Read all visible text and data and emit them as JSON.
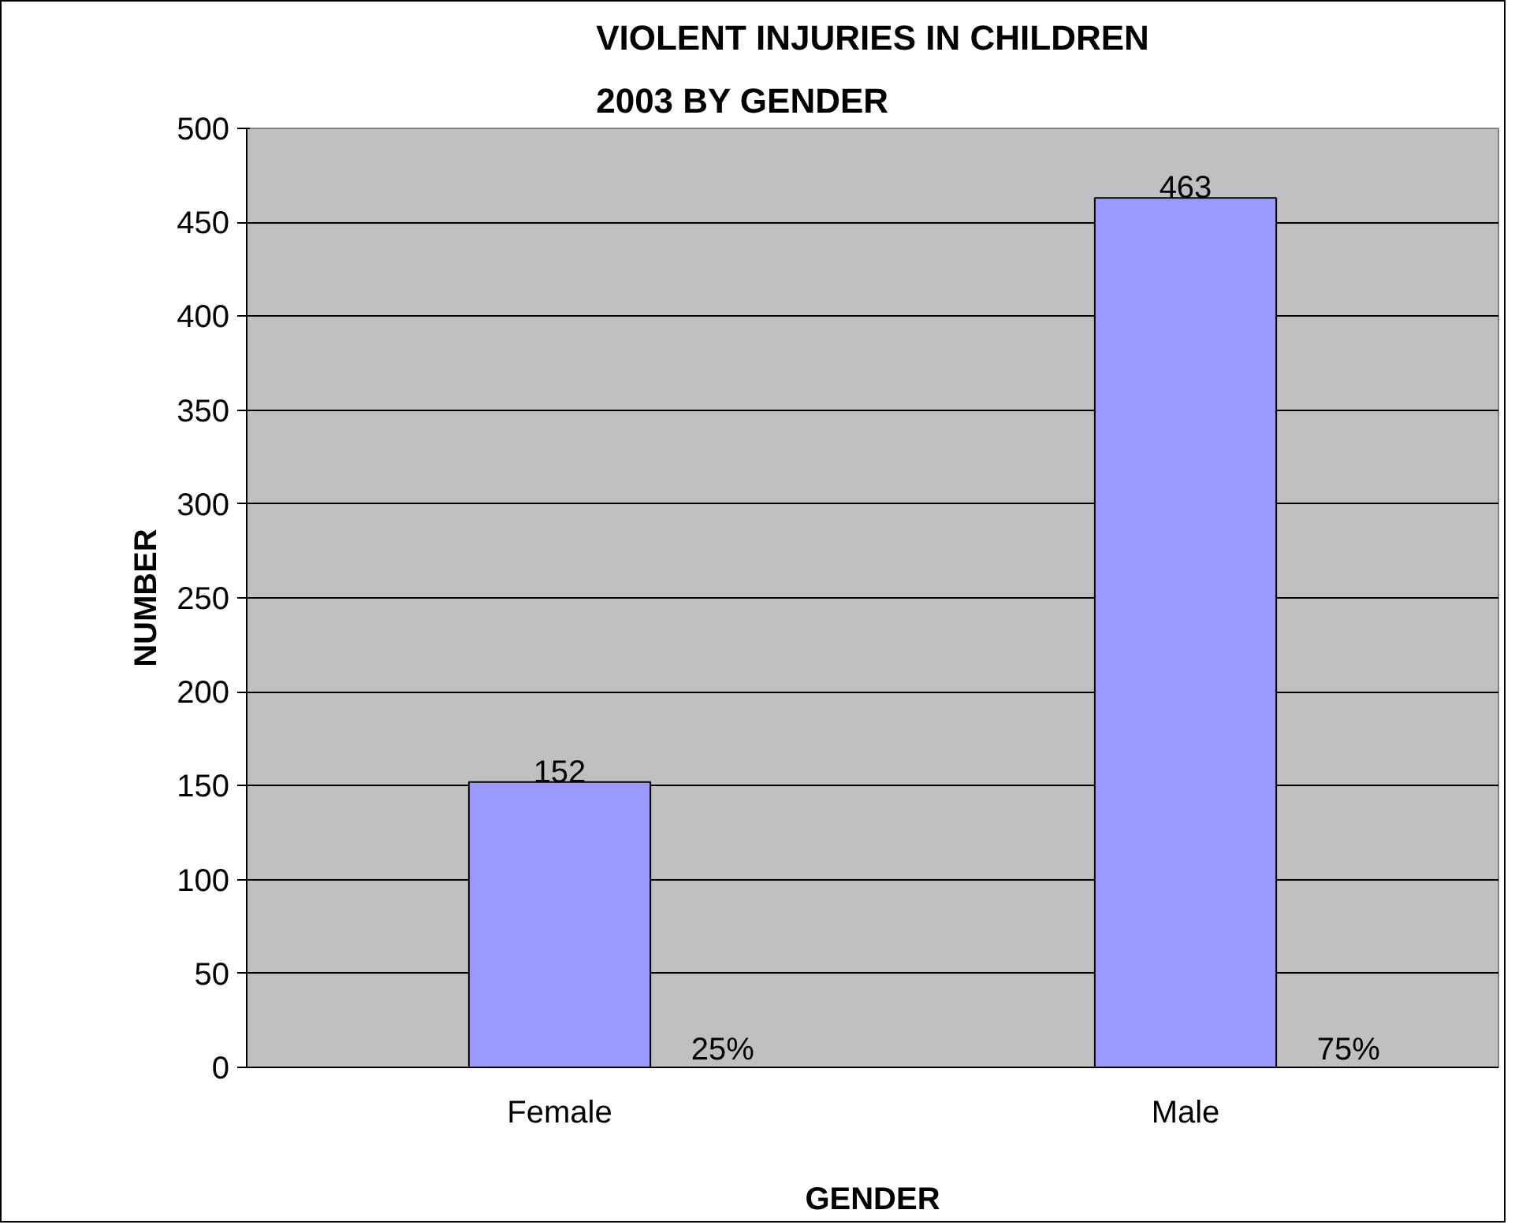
{
  "chart_data": {
    "type": "bar",
    "title": "VIOLENT INJURIES IN CHILDREN 2003 BY GENDER",
    "xlabel": "GENDER",
    "ylabel": "NUMBER",
    "categories": [
      "Female",
      "Male"
    ],
    "values": [
      152,
      463
    ],
    "color": "#9999ff",
    "data_labels": true,
    "ylim": [
      0,
      500
    ],
    "yticks": [
      0,
      50,
      100,
      150,
      200,
      250,
      300,
      350,
      400,
      450,
      500
    ],
    "grid": "y",
    "annotations": [
      "25%",
      "75%"
    ]
  }
}
